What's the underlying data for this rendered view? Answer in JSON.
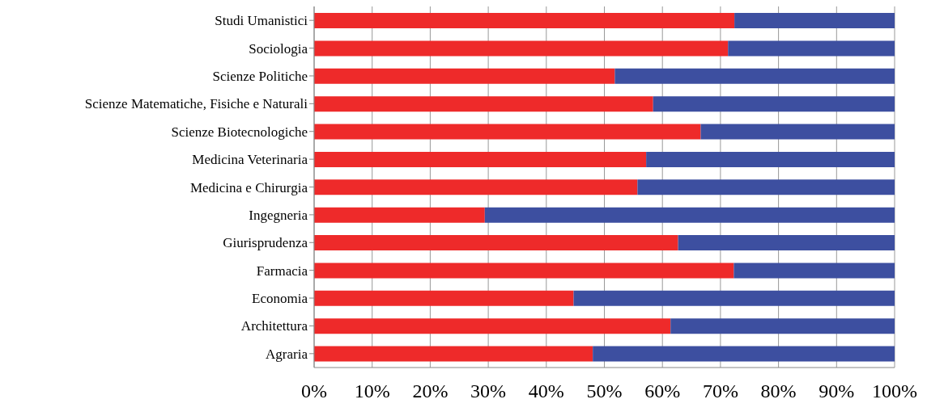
{
  "chart_data": {
    "type": "bar",
    "orientation": "horizontal",
    "stacked": true,
    "categories": [
      "Studi Umanistici",
      "Sociologia",
      "Scienze Politiche",
      "Scienze Matematiche, Fisiche e Naturali",
      "Scienze Biotecnologiche",
      "Medicina Veterinaria",
      "Medicina e Chirurgia",
      "Ingegneria",
      "Giurisprudenza",
      "Farmacia",
      "Economia",
      "Architettura",
      "Agraria"
    ],
    "series": [
      {
        "color": "#ee2a2a",
        "values": [
          72.4,
          71.3,
          51.8,
          58.4,
          66.6,
          57.2,
          55.7,
          29.4,
          62.7,
          72.3,
          44.7,
          61.4,
          48.0
        ]
      },
      {
        "color": "#3d4fa0",
        "values": [
          27.6,
          28.7,
          48.2,
          41.6,
          33.4,
          42.8,
          44.3,
          70.6,
          37.3,
          27.7,
          55.3,
          38.6,
          52.0
        ]
      }
    ],
    "xlim": [
      0,
      100
    ],
    "xticks": [
      {
        "value": 0,
        "label": "0%"
      },
      {
        "value": 10,
        "label": "10%"
      },
      {
        "value": 20,
        "label": "20%"
      },
      {
        "value": 30,
        "label": "30%"
      },
      {
        "value": 40,
        "label": "40%"
      },
      {
        "value": 50,
        "label": "50%"
      },
      {
        "value": 60,
        "label": "60%"
      },
      {
        "value": 70,
        "label": "70%"
      },
      {
        "value": 80,
        "label": "80%"
      },
      {
        "value": 90,
        "label": "90%"
      },
      {
        "value": 100,
        "label": "100%"
      }
    ],
    "grid": "x",
    "legend": false
  }
}
